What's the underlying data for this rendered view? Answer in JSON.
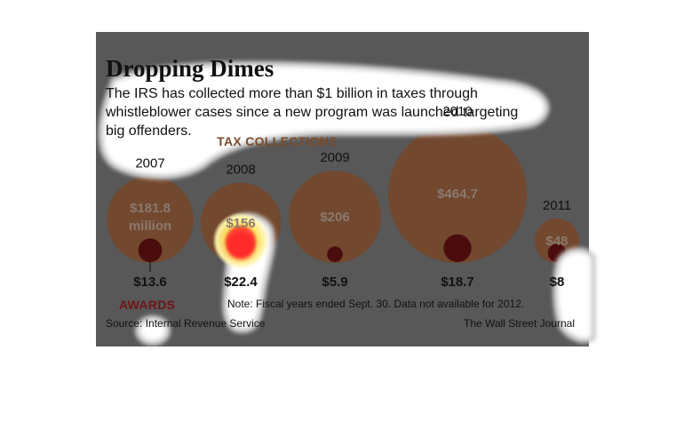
{
  "chart_data": {
    "type": "bubble",
    "title": "Dropping Dimes",
    "subtitle": [
      "The IRS has collected more than $1 billion in taxes through",
      "whistleblower cases since a new program was launched targeting",
      "big offenders."
    ],
    "legend_tax": "TAX COLLECTIONS",
    "legend_awards": "AWARDS",
    "note": "Note: Fiscal years ended Sept. 30. Data not available for 2012.",
    "source": "Source: Internal Revenue Service",
    "credit": "The Wall Street Journal",
    "unit": "million",
    "years": [
      "2007",
      "2008",
      "2009",
      "2010",
      "2011"
    ],
    "tax_collections": [
      181.8,
      156,
      206,
      464.7,
      48
    ],
    "tax_labels": [
      "$181.8",
      "$156",
      "$206",
      "$464.7",
      "$48"
    ],
    "awards": [
      13.6,
      22.4,
      5.9,
      18.7,
      8
    ],
    "award_labels": [
      "$13.6",
      "$22.4",
      "$5.9",
      "$18.7",
      "$8"
    ],
    "colors": {
      "tax": "#a0541f",
      "awards": "#5a0b0b",
      "background": "#ffffff"
    }
  }
}
